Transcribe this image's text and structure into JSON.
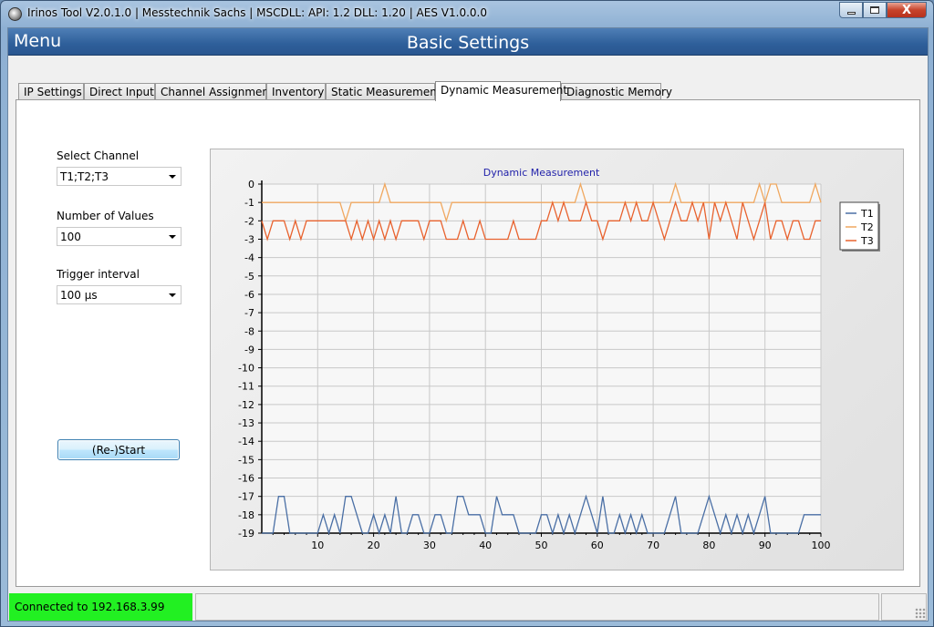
{
  "window": {
    "title": "Irinos Tool V2.0.1.0 | Messtechnik Sachs | MSCDLL: API: 1.2 DLL: 1.20 | AES V1.0.0.0",
    "minimize_icon": "minimize-icon",
    "maximize_icon": "maximize-icon",
    "close_label": "X"
  },
  "header": {
    "menu_label": "Menu",
    "page_title": "Basic Settings"
  },
  "tabs": [
    {
      "label": "IP Settings",
      "active": false
    },
    {
      "label": "Direct Input",
      "active": false
    },
    {
      "label": "Channel Assignment",
      "active": false
    },
    {
      "label": "Inventory",
      "active": false
    },
    {
      "label": "Static Measurement",
      "active": false
    },
    {
      "label": "Dynamic Measurement",
      "active": true
    },
    {
      "label": "Diagnostic Memory",
      "active": false
    }
  ],
  "form": {
    "select_channel_label": "Select Channel",
    "select_channel_value": "T1;T2;T3",
    "number_of_values_label": "Number of Values",
    "number_of_values_value": "100",
    "trigger_interval_label": "Trigger interval",
    "trigger_interval_value": "100 µs",
    "restart_label": "(Re-)Start"
  },
  "status": {
    "connection": "Connected to 192.168.3.99",
    "connection_color": "#22f022"
  },
  "chart_data": {
    "type": "line",
    "title": "Dynamic Measurement",
    "xlabel": "",
    "ylabel": "",
    "xlim": [
      0,
      100
    ],
    "ylim": [
      -19,
      0
    ],
    "x_ticks": [
      10,
      20,
      30,
      40,
      50,
      60,
      70,
      80,
      90,
      100
    ],
    "y_ticks": [
      0,
      -1,
      -2,
      -3,
      -4,
      -5,
      -6,
      -7,
      -8,
      -9,
      -10,
      -11,
      -12,
      -13,
      -14,
      -15,
      -16,
      -17,
      -18,
      -19
    ],
    "grid": true,
    "legend_position": "right",
    "series": [
      {
        "name": "T1",
        "color": "#4a6fa5",
        "x": [
          0,
          1,
          2,
          3,
          4,
          5,
          6,
          7,
          8,
          9,
          10,
          11,
          12,
          13,
          14,
          15,
          16,
          17,
          18,
          19,
          20,
          21,
          22,
          23,
          24,
          25,
          26,
          27,
          28,
          29,
          30,
          31,
          32,
          33,
          34,
          35,
          36,
          37,
          38,
          39,
          40,
          41,
          42,
          43,
          44,
          45,
          46,
          47,
          48,
          49,
          50,
          51,
          52,
          53,
          54,
          55,
          56,
          57,
          58,
          59,
          60,
          61,
          62,
          63,
          64,
          65,
          66,
          67,
          68,
          69,
          70,
          71,
          72,
          73,
          74,
          75,
          76,
          77,
          78,
          79,
          80,
          81,
          82,
          83,
          84,
          85,
          86,
          87,
          88,
          89,
          90,
          91,
          92,
          93,
          94,
          95,
          96,
          97,
          98,
          99,
          100
        ],
        "y": [
          -19,
          -19,
          -19,
          -17,
          -17,
          -19,
          -19,
          -19,
          -19,
          -19,
          -19,
          -18,
          -19,
          -18,
          -19,
          -17,
          -17,
          -18,
          -19,
          -19,
          -18,
          -19,
          -18,
          -19,
          -17,
          -19,
          -19,
          -18,
          -18,
          -19,
          -19,
          -18,
          -18,
          -19,
          -19,
          -17,
          -17,
          -18,
          -18,
          -18,
          -19,
          -19,
          -17,
          -18,
          -18,
          -18,
          -19,
          -19,
          -19,
          -19,
          -18,
          -18,
          -19,
          -18,
          -19,
          -18,
          -19,
          -18,
          -17,
          -18,
          -19,
          -17,
          -19,
          -19,
          -18,
          -19,
          -18,
          -19,
          -18,
          -19,
          -19,
          -19,
          -19,
          -18,
          -17,
          -19,
          -19,
          -19,
          -19,
          -18,
          -17,
          -18,
          -19,
          -18,
          -19,
          -18,
          -19,
          -18,
          -19,
          -18,
          -17,
          -19,
          -19,
          -19,
          -19,
          -19,
          -19,
          -18,
          -18,
          -18,
          -18
        ]
      },
      {
        "name": "T2",
        "color": "#f0a860",
        "x": [
          0,
          1,
          2,
          3,
          4,
          5,
          6,
          7,
          8,
          9,
          10,
          11,
          12,
          13,
          14,
          15,
          16,
          17,
          18,
          19,
          20,
          21,
          22,
          23,
          24,
          25,
          26,
          27,
          28,
          29,
          30,
          31,
          32,
          33,
          34,
          35,
          36,
          37,
          38,
          39,
          40,
          41,
          42,
          43,
          44,
          45,
          46,
          47,
          48,
          49,
          50,
          51,
          52,
          53,
          54,
          55,
          56,
          57,
          58,
          59,
          60,
          61,
          62,
          63,
          64,
          65,
          66,
          67,
          68,
          69,
          70,
          71,
          72,
          73,
          74,
          75,
          76,
          77,
          78,
          79,
          80,
          81,
          82,
          83,
          84,
          85,
          86,
          87,
          88,
          89,
          90,
          91,
          92,
          93,
          94,
          95,
          96,
          97,
          98,
          99,
          100
        ],
        "y": [
          -1,
          -1,
          -1,
          -1,
          -1,
          -1,
          -1,
          -1,
          -1,
          -1,
          -1,
          -1,
          -1,
          -1,
          -1,
          -2,
          -1,
          -1,
          -1,
          -1,
          -1,
          -1,
          0,
          -1,
          -1,
          -1,
          -1,
          -1,
          -1,
          -1,
          -1,
          -1,
          -1,
          -2,
          -1,
          -1,
          -1,
          -1,
          -1,
          -1,
          -1,
          -1,
          -1,
          -1,
          -1,
          -1,
          -1,
          -1,
          -1,
          -1,
          -1,
          -1,
          -1,
          -1,
          -1,
          -1,
          -1,
          0,
          -1,
          -1,
          -1,
          -1,
          -1,
          -1,
          -1,
          -1,
          -1,
          -1,
          -1,
          -1,
          -1,
          -1,
          -1,
          -1,
          0,
          -1,
          -1,
          -1,
          -1,
          -1,
          -1,
          -1,
          -1,
          -1,
          -1,
          -1,
          -1,
          -1,
          -1,
          0,
          -1,
          0,
          0,
          -1,
          -1,
          -1,
          -1,
          -1,
          -1,
          0,
          -1
        ]
      },
      {
        "name": "T3",
        "color": "#e8622e",
        "x": [
          0,
          1,
          2,
          3,
          4,
          5,
          6,
          7,
          8,
          9,
          10,
          11,
          12,
          13,
          14,
          15,
          16,
          17,
          18,
          19,
          20,
          21,
          22,
          23,
          24,
          25,
          26,
          27,
          28,
          29,
          30,
          31,
          32,
          33,
          34,
          35,
          36,
          37,
          38,
          39,
          40,
          41,
          42,
          43,
          44,
          45,
          46,
          47,
          48,
          49,
          50,
          51,
          52,
          53,
          54,
          55,
          56,
          57,
          58,
          59,
          60,
          61,
          62,
          63,
          64,
          65,
          66,
          67,
          68,
          69,
          70,
          71,
          72,
          73,
          74,
          75,
          76,
          77,
          78,
          79,
          80,
          81,
          82,
          83,
          84,
          85,
          86,
          87,
          88,
          89,
          90,
          91,
          92,
          93,
          94,
          95,
          96,
          97,
          98,
          99,
          100
        ],
        "y": [
          -2,
          -3,
          -2,
          -2,
          -2,
          -3,
          -2,
          -3,
          -2,
          -2,
          -2,
          -2,
          -2,
          -2,
          -2,
          -2,
          -3,
          -2,
          -3,
          -2,
          -3,
          -2,
          -3,
          -2,
          -3,
          -2,
          -2,
          -2,
          -2,
          -3,
          -2,
          -2,
          -2,
          -3,
          -3,
          -3,
          -2,
          -3,
          -3,
          -2,
          -3,
          -3,
          -3,
          -3,
          -3,
          -2,
          -3,
          -3,
          -3,
          -3,
          -2,
          -2,
          -1,
          -2,
          -1,
          -2,
          -2,
          -2,
          -1,
          -2,
          -2,
          -3,
          -2,
          -2,
          -2,
          -1,
          -2,
          -1,
          -2,
          -2,
          -1,
          -2,
          -3,
          -2,
          -1,
          -2,
          -2,
          -1,
          -2,
          -1,
          -3,
          -1,
          -2,
          -1,
          -2,
          -3,
          -1,
          -2,
          -3,
          -2,
          -1,
          -3,
          -2,
          -2,
          -3,
          -2,
          -2,
          -3,
          -3,
          -2,
          -2
        ]
      }
    ]
  }
}
